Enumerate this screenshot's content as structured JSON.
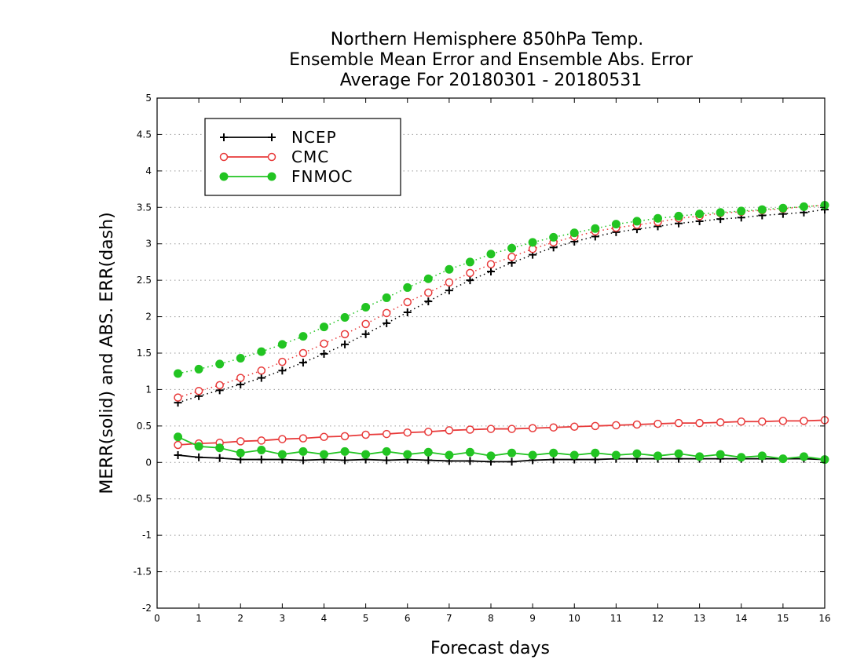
{
  "chart_data": {
    "type": "line",
    "title_lines": [
      "Northern Hemisphere 850hPa Temp.",
      "Ensemble Mean Error and Ensemble Abs. Error",
      "Average For 20180301 - 20180531"
    ],
    "xlabel": "Forecast days",
    "ylabel": "MERR(solid) and ABS. ERR(dash)",
    "xlim": [
      0,
      16
    ],
    "ylim": [
      -2,
      5
    ],
    "xticks": [
      "0",
      "1",
      "2",
      "3",
      "4",
      "5",
      "6",
      "7",
      "8",
      "9",
      "10",
      "11",
      "12",
      "13",
      "14",
      "15",
      "16"
    ],
    "yticks": [
      "5",
      "4.5",
      "4",
      "3.5",
      "3",
      "2.5",
      "2",
      "1.5",
      "1",
      "0.5",
      "0",
      "-0.5",
      "-1",
      "-1.5",
      "-2"
    ],
    "grid": "horizontal dotted",
    "legend_position": "top-left",
    "x": [
      0.5,
      1,
      1.5,
      2,
      2.5,
      3,
      3.5,
      4,
      4.5,
      5,
      5.5,
      6,
      6.5,
      7,
      7.5,
      8,
      8.5,
      9,
      9.5,
      10,
      10.5,
      11,
      11.5,
      12,
      12.5,
      13,
      13.5,
      14,
      14.5,
      15,
      15.5,
      16
    ],
    "series": [
      {
        "name": "NCEP",
        "color": "#000000",
        "marker": "plus",
        "merr": [
          0.1,
          0.07,
          0.06,
          0.04,
          0.04,
          0.04,
          0.03,
          0.04,
          0.03,
          0.04,
          0.03,
          0.04,
          0.03,
          0.02,
          0.02,
          0.01,
          0.01,
          0.03,
          0.04,
          0.04,
          0.04,
          0.05,
          0.05,
          0.05,
          0.05,
          0.05,
          0.05,
          0.05,
          0.05,
          0.05,
          0.05,
          0.04
        ],
        "abs_err": [
          0.82,
          0.91,
          0.99,
          1.07,
          1.16,
          1.26,
          1.37,
          1.49,
          1.62,
          1.76,
          1.91,
          2.06,
          2.21,
          2.36,
          2.5,
          2.62,
          2.74,
          2.85,
          2.95,
          3.03,
          3.1,
          3.16,
          3.2,
          3.24,
          3.28,
          3.31,
          3.34,
          3.36,
          3.39,
          3.41,
          3.43,
          3.47
        ]
      },
      {
        "name": "CMC",
        "color": "#e83a3a",
        "marker": "open-circle",
        "merr": [
          0.24,
          0.26,
          0.27,
          0.29,
          0.3,
          0.32,
          0.33,
          0.35,
          0.36,
          0.38,
          0.39,
          0.41,
          0.42,
          0.44,
          0.45,
          0.46,
          0.46,
          0.47,
          0.48,
          0.49,
          0.5,
          0.51,
          0.52,
          0.53,
          0.54,
          0.54,
          0.55,
          0.56,
          0.56,
          0.57,
          0.57,
          0.58
        ],
        "abs_err": [
          0.89,
          0.98,
          1.06,
          1.16,
          1.26,
          1.38,
          1.5,
          1.63,
          1.76,
          1.9,
          2.05,
          2.2,
          2.33,
          2.47,
          2.6,
          2.72,
          2.82,
          2.93,
          3.02,
          3.1,
          3.17,
          3.22,
          3.26,
          3.3,
          3.35,
          3.38,
          3.42,
          3.44,
          3.46,
          3.48,
          3.51,
          3.53
        ]
      },
      {
        "name": "FNMOC",
        "color": "#22c422",
        "marker": "filled-circle",
        "merr": [
          0.35,
          0.22,
          0.2,
          0.13,
          0.17,
          0.11,
          0.15,
          0.11,
          0.15,
          0.11,
          0.15,
          0.11,
          0.14,
          0.1,
          0.14,
          0.09,
          0.13,
          0.1,
          0.13,
          0.1,
          0.13,
          0.1,
          0.12,
          0.09,
          0.12,
          0.08,
          0.11,
          0.07,
          0.09,
          0.05,
          0.08,
          0.04
        ],
        "abs_err": [
          1.22,
          1.28,
          1.35,
          1.43,
          1.52,
          1.62,
          1.73,
          1.86,
          1.99,
          2.13,
          2.26,
          2.4,
          2.52,
          2.65,
          2.75,
          2.86,
          2.94,
          3.02,
          3.09,
          3.15,
          3.21,
          3.27,
          3.31,
          3.35,
          3.38,
          3.41,
          3.43,
          3.45,
          3.47,
          3.49,
          3.51,
          3.53
        ]
      }
    ]
  }
}
